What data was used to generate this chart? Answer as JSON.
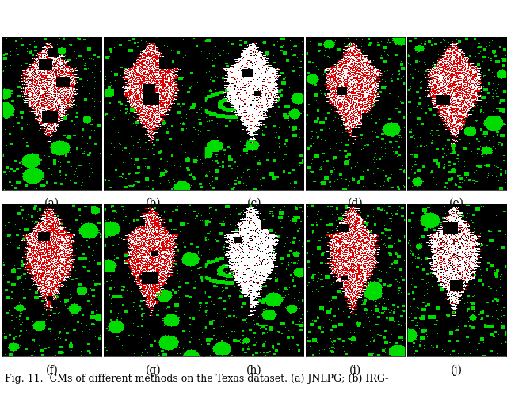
{
  "figure_title": "Fig. 11.  CMs of different methods on the Texas dataset. (a) JNLPG; (b) IRG-",
  "nrows": 2,
  "ncols": 5,
  "labels_row1": [
    "(a)",
    "(b)",
    "(c)",
    "(d)",
    "(e)"
  ],
  "labels_row2": [
    "(f)",
    "(g)",
    "(h)",
    "(i)",
    "(j)"
  ],
  "bg_color": "#ffffff",
  "label_fontsize": 10,
  "caption_fontsize": 9,
  "fig_width": 6.4,
  "fig_height": 5.1
}
